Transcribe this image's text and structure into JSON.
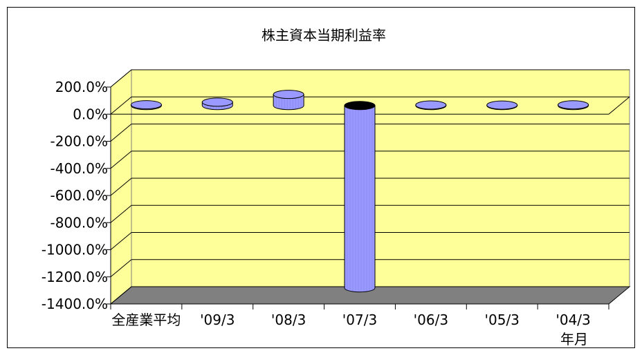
{
  "chart_data": {
    "type": "bar",
    "title": "株主資本当期利益率",
    "xlabel": "年月",
    "ylabel": "",
    "categories": [
      "全産業平均",
      "'09/3",
      "'08/3",
      "'07/3",
      "'06/3",
      "'05/3",
      "'04/3"
    ],
    "series": [
      {
        "values": [
          6,
          25,
          82,
          -1345,
          4,
          3,
          5
        ]
      }
    ],
    "ylim": [
      -1400,
      200
    ],
    "yticks": [
      200,
      0,
      -200,
      -400,
      -600,
      -800,
      -1000,
      -1200,
      -1400
    ],
    "ytick_labels": [
      "200.0%",
      "0.0%",
      "-200.0%",
      "-400.0%",
      "-600.0%",
      "-800.0%",
      "-1000.0%",
      "-1200.0%",
      "-1400.0%"
    ],
    "grid": true,
    "legend": "none",
    "style": "3d-cylinder"
  },
  "colors": {
    "plot_wall": "#ffff99",
    "side_wall": "#ffff99",
    "floor": "#808080",
    "bar_body": "#9999ff",
    "bar_top": "#8080e0",
    "bar_top_negative": "#000000"
  }
}
